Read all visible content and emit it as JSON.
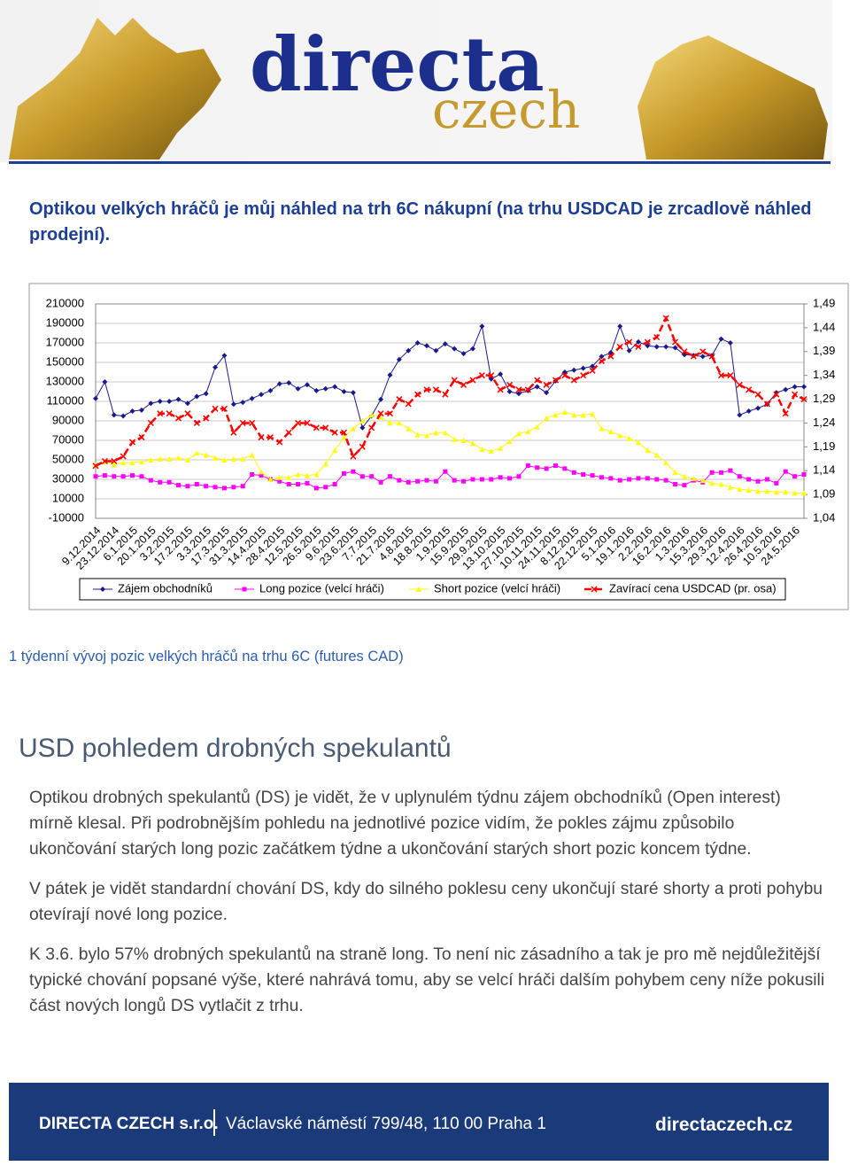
{
  "header": {
    "logo_top": "directa",
    "logo_bottom": "czech"
  },
  "intro": "Optikou velkých hráčů je můj náhled na trh 6C nákupní (na trhu USDCAD je zrcadlově náhled prodejní).",
  "chart_data": {
    "type": "line",
    "categories": [
      "9.12.2014",
      null,
      "23.12.2014",
      null,
      "6.1.2015",
      null,
      "20.1.2015",
      null,
      "3.2.2015",
      null,
      "17.2.2015",
      null,
      "3.3.2015",
      null,
      "17.3.2015",
      null,
      "31.3.2015",
      null,
      "14.4.2015",
      null,
      "28.4.2015",
      null,
      "12.5.2015",
      null,
      "26.5.2015",
      null,
      "9.6.2015",
      null,
      "23.6.2015",
      null,
      "7.7.2015",
      null,
      "21.7.2015",
      null,
      "4.8.2015",
      null,
      "18.8.2015",
      null,
      "1.9.2015",
      null,
      "15.9.2015",
      null,
      "29.9.2015",
      null,
      "13.10.2015",
      null,
      "27.10.2015",
      null,
      "10.11.2015",
      null,
      "24.11.2015",
      null,
      "8.12.2015",
      null,
      "22.12.2015",
      null,
      "5.1.2016",
      null,
      "19.1.2016",
      null,
      "2.2.2016",
      null,
      "16.2.2016",
      null,
      "1.3.2016",
      null,
      "15.3.2016",
      null,
      "29.3.2016",
      null,
      "12.4.2016",
      null,
      "26.4.2016",
      null,
      "10.5.2016",
      null,
      "24.5.2016",
      null
    ],
    "series": [
      {
        "name": "Zájem obchodníků",
        "color": "#1a1a8c",
        "marker": "diamond",
        "values": [
          113000,
          130000,
          96000,
          95000,
          100000,
          101000,
          108000,
          110000,
          110000,
          112000,
          108000,
          115000,
          118000,
          145000,
          157000,
          107000,
          109000,
          113000,
          117000,
          121000,
          128000,
          129000,
          123000,
          127000,
          121000,
          123000,
          125000,
          120000,
          119000,
          83000,
          95000,
          112000,
          137000,
          153000,
          162000,
          170000,
          167000,
          162000,
          169000,
          164000,
          159000,
          164000,
          187000,
          133000,
          138000,
          120000,
          118000,
          121000,
          125000,
          119000,
          131000,
          140000,
          142000,
          144000,
          146000,
          156000,
          160000,
          187000,
          162000,
          171000,
          167000,
          166000,
          166000,
          165000,
          158000,
          157000,
          156000,
          157000,
          174000,
          170000,
          96000,
          100000,
          103000,
          107000,
          119000,
          122000,
          125000,
          125000
        ]
      },
      {
        "name": "Long pozice (velcí hráči)",
        "color": "#ff00ff",
        "marker": "square",
        "values": [
          33000,
          34000,
          33000,
          33000,
          34000,
          33000,
          29000,
          27000,
          27000,
          24000,
          23000,
          25000,
          23000,
          22000,
          21000,
          22000,
          23000,
          35000,
          34000,
          30000,
          28000,
          25000,
          25000,
          26000,
          21000,
          22000,
          25000,
          36000,
          38000,
          33000,
          33000,
          27000,
          33000,
          29000,
          27000,
          28000,
          29000,
          28000,
          38000,
          29000,
          28000,
          30000,
          30000,
          30000,
          32000,
          31000,
          33000,
          44000,
          42000,
          41000,
          44000,
          41000,
          37000,
          35000,
          34000,
          32000,
          31000,
          29000,
          30000,
          31000,
          31000,
          30000,
          29000,
          25000,
          24000,
          29000,
          27000,
          37000,
          37000,
          39000,
          33000,
          30000,
          28000,
          30000,
          26000,
          38000,
          33000,
          35000
        ]
      },
      {
        "name": "Short pozice (velcí hráči)",
        "color": "#ffff00",
        "marker": "triangle",
        "values": [
          45000,
          48000,
          45000,
          47000,
          47000,
          48000,
          50000,
          51000,
          51000,
          52000,
          50000,
          57000,
          55000,
          52000,
          50000,
          51000,
          51000,
          55000,
          38000,
          30000,
          32000,
          32000,
          35000,
          34000,
          35000,
          46000,
          60000,
          73000,
          82000,
          90000,
          96000,
          94000,
          88000,
          88000,
          82000,
          76000,
          75000,
          78000,
          78000,
          71000,
          70000,
          67000,
          61000,
          59000,
          62000,
          69000,
          77000,
          79000,
          84000,
          93000,
          96000,
          99000,
          96000,
          96000,
          97000,
          82000,
          79000,
          75000,
          72000,
          68000,
          60000,
          55000,
          47000,
          37000,
          33000,
          31000,
          29000,
          26000,
          25000,
          22000,
          20000,
          19000,
          18000,
          18000,
          17000,
          17000,
          16000,
          16000
        ]
      },
      {
        "name": "Zavírací cena USDCAD (pr. osa)",
        "color": "#ff0000",
        "marker": "x",
        "dashed": true,
        "axis": "y2",
        "values": [
          1.15,
          1.16,
          1.16,
          1.17,
          1.2,
          1.21,
          1.24,
          1.26,
          1.26,
          1.25,
          1.26,
          1.24,
          1.25,
          1.27,
          1.27,
          1.22,
          1.24,
          1.24,
          1.21,
          1.21,
          1.2,
          1.22,
          1.24,
          1.24,
          1.23,
          1.23,
          1.22,
          1.22,
          1.17,
          1.19,
          1.23,
          1.26,
          1.26,
          1.29,
          1.28,
          1.3,
          1.31,
          1.31,
          1.3,
          1.33,
          1.32,
          1.33,
          1.34,
          1.34,
          1.31,
          1.32,
          1.31,
          1.31,
          1.33,
          1.32,
          1.33,
          1.34,
          1.33,
          1.34,
          1.35,
          1.37,
          1.38,
          1.4,
          1.41,
          1.4,
          1.41,
          1.42,
          1.46,
          1.41,
          1.39,
          1.38,
          1.39,
          1.38,
          1.34,
          1.34,
          1.32,
          1.31,
          1.3,
          1.28,
          1.3,
          1.26,
          1.3,
          1.29
        ]
      }
    ],
    "ylim": [
      -10000,
      210000
    ],
    "yticks": [
      -10000,
      10000,
      30000,
      50000,
      70000,
      90000,
      110000,
      130000,
      150000,
      170000,
      190000,
      210000
    ],
    "y2lim": [
      1.04,
      1.49
    ],
    "y2ticks": [
      {
        "value": 1.04,
        "label": "1,04"
      },
      {
        "value": 1.09,
        "label": "1,09"
      },
      {
        "value": 1.14,
        "label": "1,14"
      },
      {
        "value": 1.19,
        "label": "1,19"
      },
      {
        "value": 1.24,
        "label": "1,24"
      },
      {
        "value": 1.29,
        "label": "1,29"
      },
      {
        "value": 1.34,
        "label": "1,34"
      },
      {
        "value": 1.39,
        "label": "1,39"
      },
      {
        "value": 1.44,
        "label": "1,44"
      },
      {
        "value": 1.49,
        "label": "1,49"
      }
    ],
    "grid": true,
    "legend": "bottom"
  },
  "caption": "1 týdenní vývoj pozic velkých hráčů na trhu 6C (futures CAD)",
  "section": {
    "heading": "USD pohledem drobných spekulantů",
    "paragraphs": [
      "Optikou drobných spekulantů (DS) je vidět, že v uplynulém týdnu zájem obchodníků (Open interest) mírně klesal. Při podrobnějším pohledu na jednotlivé pozice vidím, že pokles zájmu způsobilo ukončování starých long pozic začátkem týdne a ukončování starých short pozic koncem týdne.",
      "V pátek je vidět standardní chování DS, kdy do silného poklesu ceny ukončují staré shorty a proti pohybu otevírají nové long pozice.",
      "K 3.6. bylo 57% drobných spekulantů na straně long. To není nic zásadního a tak je pro mě nejdůležitější typické chování popsané výše, které nahrává tomu, aby se velcí hráči dalším pohybem ceny níže pokusili část nových longů DS vytlačit z trhu."
    ]
  },
  "footer": {
    "company": "DIRECTA CZECH s.r.o.",
    "address": "Václavské náměstí 799/48, 110 00 Praha 1",
    "web": "directaczech.cz"
  }
}
